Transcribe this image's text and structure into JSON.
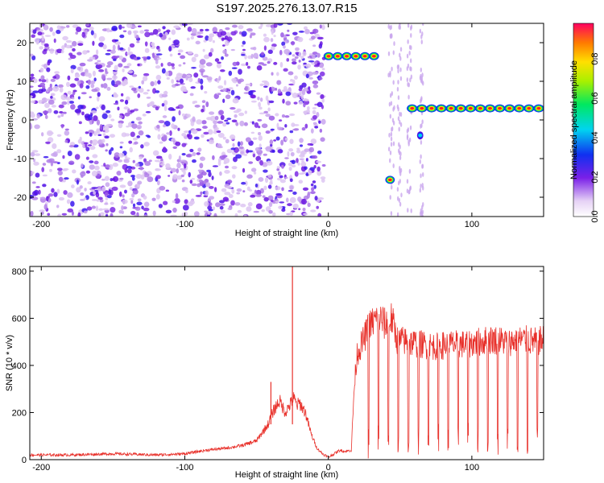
{
  "title": "S197.2025.276.13.07.R15",
  "chart_data": [
    {
      "type": "heatmap",
      "xlabel": "Height of straight line (km)",
      "ylabel": "Frequency (Hz)",
      "xlim": [
        -208,
        150
      ],
      "ylim": [
        -25,
        25
      ],
      "xticks": [
        -200,
        -100,
        0,
        100
      ],
      "yticks": [
        -20,
        -10,
        0,
        10,
        20
      ],
      "colorbar": {
        "label": "Normalized spectral amplitude",
        "range": [
          0,
          0.98
        ],
        "ticks": [
          0.0,
          0.2,
          0.4,
          0.6,
          0.8
        ]
      },
      "ridges": [
        {
          "x_start": -3,
          "x_end": 35,
          "freq": 16.5,
          "amplitude": 0.9
        },
        {
          "x_start": 40,
          "x_end": 46,
          "freq": -15.5,
          "amplitude": 0.85
        },
        {
          "x_start": 62,
          "x_end": 66,
          "freq": -4,
          "amplitude": 0.35
        },
        {
          "x_start": 55,
          "x_end": 150,
          "freq": 3,
          "amplitude": 0.9
        }
      ]
    },
    {
      "type": "line",
      "xlabel": "Height of straight line (km)",
      "ylabel": "SNR (10 * v/v)",
      "xlim": [
        -208,
        150
      ],
      "ylim": [
        0,
        820
      ],
      "xticks": [
        -200,
        -100,
        0,
        100
      ],
      "yticks": [
        0,
        200,
        400,
        600,
        800
      ],
      "series": [
        {
          "color": "#e8302a",
          "x": [
            -208,
            -180,
            -150,
            -120,
            -100,
            -85,
            -70,
            -60,
            -50,
            -42,
            -38,
            -34,
            -30,
            -26,
            -24,
            -22,
            -20,
            -16,
            -12,
            -8,
            -4,
            0,
            4,
            8,
            12,
            16,
            18,
            20,
            24,
            28,
            32,
            36,
            40,
            44,
            48,
            55,
            65,
            75,
            85,
            95,
            105,
            115,
            125,
            135,
            145,
            150
          ],
          "y": [
            20,
            20,
            25,
            20,
            25,
            40,
            50,
            60,
            80,
            150,
            210,
            250,
            200,
            240,
            260,
            230,
            240,
            200,
            110,
            50,
            25,
            10,
            25,
            40,
            35,
            40,
            300,
            450,
            500,
            560,
            590,
            600,
            570,
            600,
            510,
            500,
            490,
            480,
            490,
            490,
            500,
            510,
            500,
            510,
            500,
            510
          ]
        }
      ],
      "spikes": [
        {
          "x": -25,
          "y": 820
        },
        {
          "x": -40,
          "y": 330
        }
      ]
    }
  ]
}
